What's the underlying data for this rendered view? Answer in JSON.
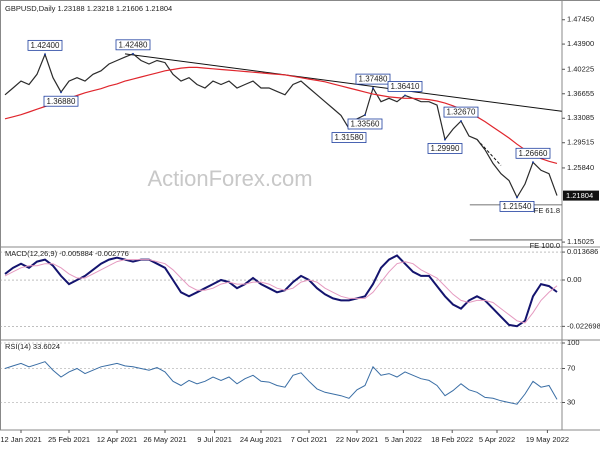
{
  "chart_data": [
    {
      "type": "line",
      "title": "GBPUSD,Daily 1.23188 1.23218 1.21606 1.21804",
      "watermark": "ActionForex.com",
      "xlim": [
        -0.625,
        69.625
      ],
      "ylim": [
        1.146,
        1.496
      ],
      "yticks": [
        {
          "value": 1.4745,
          "label": "1.47450"
        },
        {
          "value": 1.439,
          "label": "1.43900"
        },
        {
          "value": 1.40225,
          "label": "1.40225"
        },
        {
          "value": 1.36655,
          "label": "1.36655"
        },
        {
          "value": 1.33085,
          "label": "1.33085"
        },
        {
          "value": 1.29515,
          "label": "1.29515"
        },
        {
          "value": 1.2584,
          "label": "1.25840"
        },
        {
          "value": 1.15025,
          "label": "1.15025"
        }
      ],
      "current": {
        "value": 1.21804,
        "label": "1.21804"
      },
      "series": [
        {
          "name": "GBPUSD",
          "color": "#2b2b2b",
          "values": [
            1.365,
            1.375,
            1.385,
            1.38,
            1.395,
            1.424,
            1.39,
            1.369,
            1.385,
            1.39,
            1.385,
            1.395,
            1.4,
            1.41,
            1.415,
            1.42,
            1.4248,
            1.415,
            1.41,
            1.415,
            1.412,
            1.395,
            1.385,
            1.39,
            1.38,
            1.375,
            1.385,
            1.38,
            1.385,
            1.375,
            1.38,
            1.385,
            1.375,
            1.375,
            1.37,
            1.365,
            1.38,
            1.385,
            1.375,
            1.365,
            1.355,
            1.345,
            1.335,
            1.3158,
            1.33,
            1.3356,
            1.3748,
            1.355,
            1.36,
            1.355,
            1.3641,
            1.36,
            1.355,
            1.355,
            1.35,
            1.2999,
            1.315,
            1.3267,
            1.305,
            1.3,
            1.285,
            1.265,
            1.25,
            1.24,
            1.2154,
            1.235,
            1.2666,
            1.255,
            1.25,
            1.218
          ]
        },
        {
          "name": "MA",
          "color": "#e0262d",
          "values": [
            1.33,
            1.333,
            1.336,
            1.34,
            1.344,
            1.348,
            1.352,
            1.356,
            1.36,
            1.364,
            1.368,
            1.371,
            1.374,
            1.378,
            1.381,
            1.385,
            1.388,
            1.391,
            1.394,
            1.397,
            1.4,
            1.402,
            1.404,
            1.405,
            1.405,
            1.404,
            1.403,
            1.402,
            1.401,
            1.4,
            1.399,
            1.398,
            1.397,
            1.396,
            1.395,
            1.394,
            1.392,
            1.39,
            1.388,
            1.386,
            1.384,
            1.381,
            1.378,
            1.375,
            1.372,
            1.369,
            1.366,
            1.364,
            1.362,
            1.361,
            1.36,
            1.36,
            1.359,
            1.358,
            1.356,
            1.353,
            1.349,
            1.344,
            1.339,
            1.333,
            1.326,
            1.318,
            1.31,
            1.302,
            1.293,
            1.285,
            1.278,
            1.272,
            1.268,
            1.265
          ]
        }
      ],
      "annotations": [
        {
          "text": "1.42400",
          "x": 5,
          "value": 1.424
        },
        {
          "text": "1.42480",
          "x": 16,
          "value": 1.4248
        },
        {
          "text": "1.36880",
          "x": 7,
          "value": 1.3688
        },
        {
          "text": "1.37480",
          "x": 46,
          "value": 1.3748
        },
        {
          "text": "1.36410",
          "x": 50,
          "value": 1.3641
        },
        {
          "text": "1.31580",
          "x": 43,
          "value": 1.3158
        },
        {
          "text": "1.33560",
          "x": 45,
          "value": 1.3356
        },
        {
          "text": "1.32670",
          "x": 57,
          "value": 1.3267
        },
        {
          "text": "1.29990",
          "x": 55,
          "value": 1.2999
        },
        {
          "text": "1.26660",
          "x": 66,
          "value": 1.2666
        },
        {
          "text": "1.21540",
          "x": 64,
          "value": 1.2154
        }
      ],
      "trendlines": [
        {
          "x": [
            15,
            69.6
          ],
          "values": [
            1.4248,
            1.341
          ],
          "dash": false
        },
        {
          "x": [
            59,
            62
          ],
          "values": [
            1.3,
            1.262
          ],
          "dash": true
        }
      ],
      "levels": [
        {
          "label": "FE 61.8",
          "value": 1.2045,
          "x": [
            58.1,
            69.6
          ]
        },
        {
          "label": "FE 100.0",
          "value": 1.1534,
          "x": [
            58.1,
            69.6
          ]
        }
      ]
    },
    {
      "type": "line",
      "title": "MACD(12,26,9) -0.005884 -0.002776",
      "xlim": [
        -0.625,
        69.625
      ],
      "ylim": [
        -0.0284,
        0.0147
      ],
      "yticks": [
        0.013686,
        {
          "value": 0,
          "label": "0.00"
        },
        -0.022698
      ],
      "grid": true,
      "series": [
        {
          "name": "MACD",
          "color": "#14146e",
          "width": 2,
          "values": [
            0.003,
            0.006,
            0.008,
            0.006,
            0.009,
            0.01,
            0.007,
            0.002,
            -0.002,
            0,
            0.002,
            0.005,
            0.008,
            0.01,
            0.011,
            0.01,
            0.009,
            0.01,
            0.01,
            0.008,
            0.006,
            0,
            -0.006,
            -0.008,
            -0.006,
            -0.004,
            -0.002,
            0,
            -0.001,
            -0.004,
            -0.002,
            0.001,
            -0.002,
            -0.004,
            -0.006,
            -0.005,
            -0.001,
            0.002,
            0,
            -0.004,
            -0.007,
            -0.009,
            -0.01,
            -0.01,
            -0.009,
            -0.008,
            -0.002,
            0.006,
            0.01,
            0.012,
            0.008,
            0.004,
            0.002,
            0.002,
            -0.003,
            -0.008,
            -0.012,
            -0.014,
            -0.01,
            -0.008,
            -0.01,
            -0.014,
            -0.018,
            -0.022,
            -0.0226,
            -0.02,
            -0.008,
            -0.002,
            -0.003,
            -0.005884
          ]
        },
        {
          "name": "Signal",
          "color": "#e59ac0",
          "width": 1,
          "values": [
            0.002,
            0.004,
            0.006,
            0.007,
            0.007,
            0.008,
            0.008,
            0.006,
            0.003,
            0.001,
            0.001,
            0.003,
            0.005,
            0.007,
            0.009,
            0.01,
            0.01,
            0.01,
            0.01,
            0.009,
            0.008,
            0.005,
            0.001,
            -0.003,
            -0.005,
            -0.005,
            -0.004,
            -0.002,
            -0.001,
            -0.002,
            -0.002,
            -0.001,
            -0.001,
            -0.002,
            -0.004,
            -0.005,
            -0.004,
            -0.001,
            0,
            -0.001,
            -0.004,
            -0.006,
            -0.008,
            -0.009,
            -0.009,
            -0.009,
            -0.006,
            -0.001,
            0.004,
            0.008,
            0.009,
            0.008,
            0.005,
            0.003,
            0.001,
            -0.003,
            -0.007,
            -0.01,
            -0.011,
            -0.01,
            -0.01,
            -0.011,
            -0.014,
            -0.017,
            -0.02,
            -0.021,
            -0.016,
            -0.01,
            -0.006,
            -0.002776
          ]
        }
      ]
    },
    {
      "type": "line",
      "title": "RSI(14) 33.6024",
      "xlim": [
        -0.625,
        69.625
      ],
      "ylim": [
        0,
        100
      ],
      "yticks": [
        100,
        70,
        30
      ],
      "grid": true,
      "series": [
        {
          "name": "RSI",
          "color": "#3a6ea5",
          "width": 1,
          "values": [
            70,
            73,
            76,
            72,
            75,
            78,
            68,
            60,
            66,
            70,
            64,
            68,
            72,
            74,
            76,
            73,
            72,
            70,
            68,
            71,
            66,
            55,
            50,
            56,
            52,
            55,
            60,
            56,
            60,
            52,
            58,
            62,
            55,
            54,
            50,
            48,
            62,
            65,
            55,
            46,
            42,
            40,
            38,
            35,
            45,
            50,
            72,
            62,
            64,
            60,
            66,
            62,
            58,
            56,
            50,
            38,
            44,
            52,
            45,
            42,
            36,
            35,
            32,
            30,
            28,
            40,
            55,
            48,
            50,
            33.6024
          ]
        }
      ],
      "xticks": [
        {
          "value": 2,
          "label": "12 Jan 2021"
        },
        {
          "value": 8,
          "label": "25 Feb 2021"
        },
        {
          "value": 14,
          "label": "12 Apr 2021"
        },
        {
          "value": 20,
          "label": "26 May 2021"
        },
        {
          "value": 26.2,
          "label": "9 Jul 2021"
        },
        {
          "value": 32,
          "label": "24 Aug 2021"
        },
        {
          "value": 38,
          "label": "7 Oct 2021"
        },
        {
          "value": 44,
          "label": "22 Nov 2021"
        },
        {
          "value": 49.8,
          "label": "5 Jan 2022"
        },
        {
          "value": 55.9,
          "label": "18 Feb 2022"
        },
        {
          "value": 61.5,
          "label": "5 Apr 2022"
        },
        {
          "value": 67.8,
          "label": "19 May 2022"
        }
      ]
    }
  ]
}
